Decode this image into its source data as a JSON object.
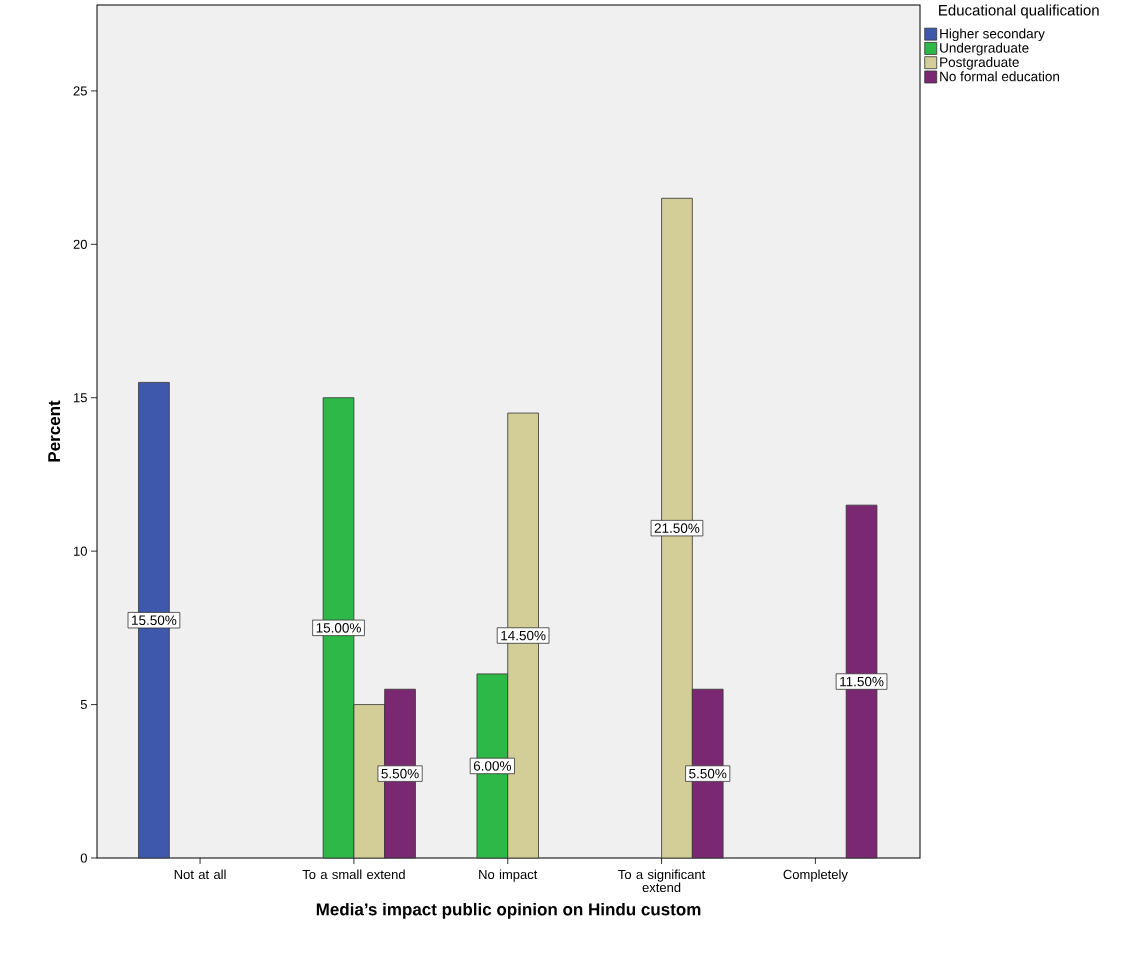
{
  "chart_data": {
    "type": "bar",
    "xlabel": "Media’s impact public opinion on Hindu custom",
    "ylabel": "Percent",
    "legend_title": "Educational qualification",
    "categories": [
      "Not at all",
      "To a small extend",
      "No impact",
      "To a significant extend",
      "Completely"
    ],
    "series": [
      {
        "name": "Higher secondary",
        "color": "#3e58ac",
        "values": [
          15.5,
          null,
          null,
          null,
          null
        ],
        "value_labels": [
          "15.50%",
          null,
          null,
          null,
          null
        ]
      },
      {
        "name": "Undergraduate",
        "color": "#2eb848",
        "values": [
          null,
          15.0,
          6.0,
          null,
          null
        ],
        "value_labels": [
          null,
          "15.00%",
          "6.00%",
          null,
          null
        ]
      },
      {
        "name": "Postgraduate",
        "color": "#d3ce97",
        "values": [
          null,
          5.0,
          14.5,
          21.5,
          null
        ],
        "value_labels": [
          null,
          null,
          "14.50%",
          "21.50%",
          null
        ]
      },
      {
        "name": "No formal education",
        "color": "#7a2872",
        "values": [
          null,
          5.5,
          null,
          5.5,
          11.5
        ],
        "value_labels": [
          null,
          "5.50%",
          null,
          "5.50%",
          "11.50%"
        ]
      }
    ],
    "ylim": [
      0,
      27.8
    ],
    "yticks": [
      0,
      5,
      10,
      15,
      20,
      25
    ],
    "grid": false,
    "legend": "top right"
  }
}
